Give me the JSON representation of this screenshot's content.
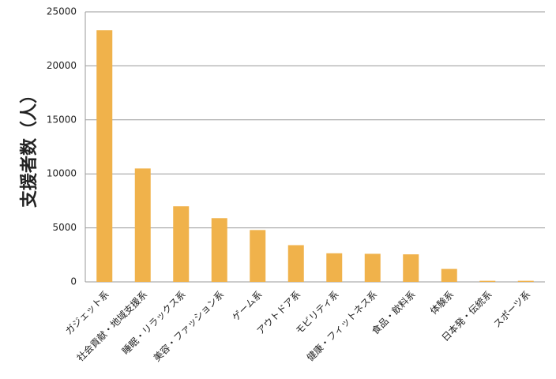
{
  "chart_data": {
    "type": "bar",
    "y_label": "支援者数（人）",
    "categories": [
      "ガジェット系",
      "社会貢献・地域支援系",
      "睡眠・リラックス系",
      "美容・ファッション系",
      "ゲーム系",
      "アウトドア系",
      "モビリティ系",
      "健康・フィットネス系",
      "食品・飲料系",
      "体験系",
      "日本発・伝統系",
      "スポーツ系"
    ],
    "values": [
      23300,
      10500,
      7000,
      5900,
      4800,
      3400,
      2650,
      2600,
      2550,
      1200,
      100,
      100
    ],
    "color": "#f0b24b",
    "ylim": [
      0,
      25000
    ],
    "yticks": [
      0,
      5000,
      10000,
      15000,
      20000,
      25000
    ],
    "grid": true
  }
}
